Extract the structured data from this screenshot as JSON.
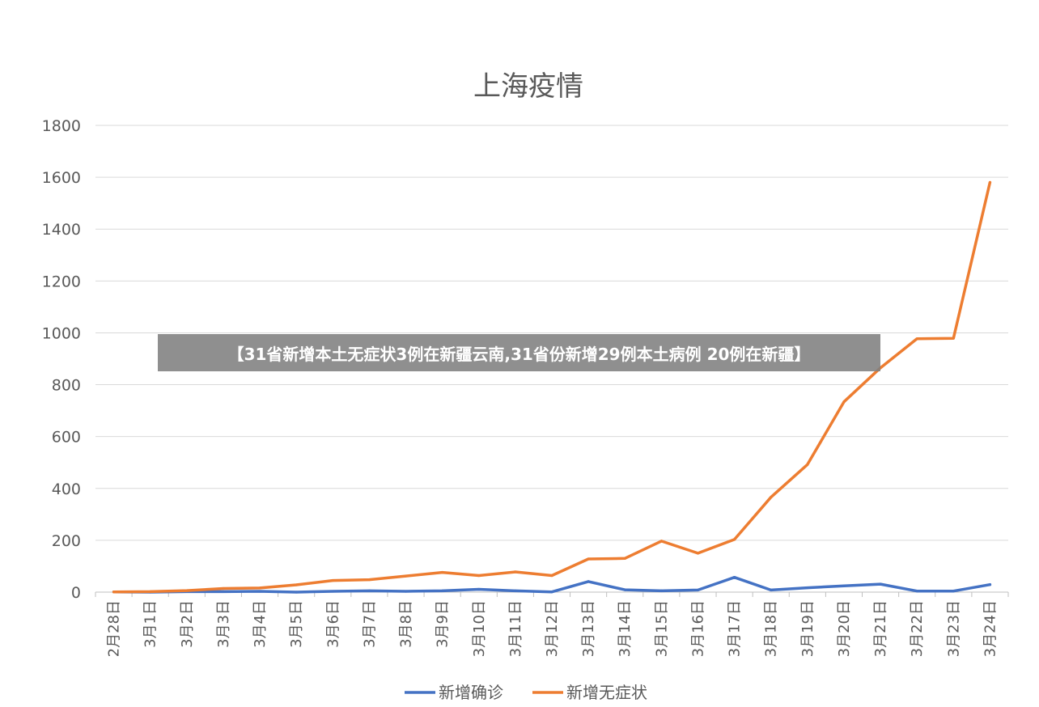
{
  "chart_data": {
    "type": "line",
    "title": "上海疫情",
    "xlabel": "",
    "ylabel": "",
    "ylim": [
      0,
      1800
    ],
    "yticks": [
      0,
      200,
      400,
      600,
      800,
      1000,
      1200,
      1400,
      1600,
      1800
    ],
    "grid": true,
    "legend_position": "bottom",
    "categories": [
      "2月28日",
      "3月1日",
      "3月2日",
      "3月3日",
      "3月4日",
      "3月5日",
      "3月6日",
      "3月7日",
      "3月8日",
      "3月9日",
      "3月10日",
      "3月11日",
      "3月12日",
      "3月13日",
      "3月14日",
      "3月15日",
      "3月16日",
      "3月17日",
      "3月18日",
      "3月19日",
      "3月20日",
      "3月21日",
      "3月22日",
      "3月23日",
      "3月24日"
    ],
    "series": [
      {
        "name": "新增确诊",
        "color": "#4472C4",
        "values": [
          1,
          0,
          2,
          2,
          3,
          0,
          3,
          5,
          3,
          5,
          11,
          5,
          1,
          41,
          9,
          5,
          8,
          57,
          8,
          17,
          24,
          31,
          4,
          4,
          29
        ]
      },
      {
        "name": "新增无症状",
        "color": "#ED7D31",
        "values": [
          1,
          2,
          6,
          14,
          16,
          28,
          45,
          48,
          62,
          76,
          64,
          78,
          64,
          128,
          130,
          197,
          150,
          203,
          366,
          492,
          734,
          865,
          977,
          979,
          1580
        ]
      }
    ]
  },
  "overlay": {
    "banner_text": "【31省新增本土无症状3例在新疆云南,31省份新增29例本土病例 20例在新疆】"
  }
}
